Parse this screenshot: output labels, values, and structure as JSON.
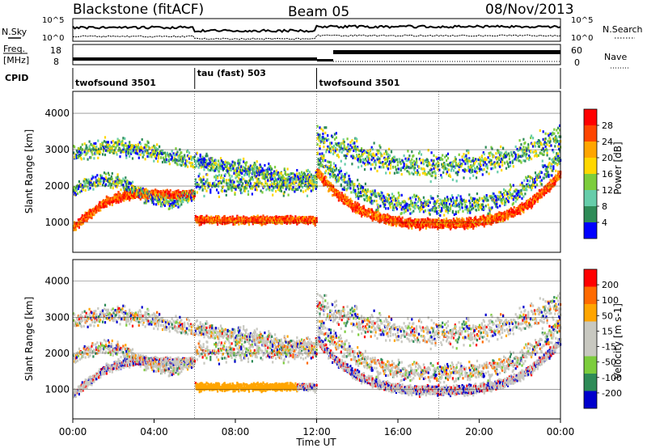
{
  "header": {
    "station": "Blackstone (fitACF)",
    "beam": "Beam 05",
    "date": "08/Nov/2013"
  },
  "top_panel": {
    "left_label": "N.Sky",
    "right_label": "N.Search",
    "left_ticks": [
      "10^5",
      "10^0"
    ],
    "right_ticks": [
      "10^5",
      "10^0"
    ]
  },
  "freq_panel": {
    "left_label_1": "Freq.",
    "left_label_2": "[MHz]",
    "left_ticks": [
      "18",
      "8"
    ],
    "right_label": "Nave",
    "right_ticks": [
      "60",
      "0"
    ]
  },
  "cpid": {
    "label": "CPID",
    "segments": [
      {
        "start_h": 0,
        "end_h": 6,
        "name": "twofsound 3501"
      },
      {
        "start_h": 6,
        "end_h": 12,
        "name": "tau (fast) 503"
      },
      {
        "start_h": 12,
        "end_h": 24,
        "name": "twofsound 3501"
      }
    ]
  },
  "colors": {
    "power_scale": [
      "#0000ff",
      "#2e8b57",
      "#66cdaa",
      "#7ccd3c",
      "#ffd700",
      "#ffa500",
      "#ff4500",
      "#ff0000"
    ],
    "velocity_scale": [
      "#0000cd",
      "#2e8b57",
      "#7ccd3c",
      "#c8c8c0",
      "#c8c8c0",
      "#ffa500",
      "#ff6a00",
      "#ff0000"
    ]
  },
  "chart_data": [
    {
      "type": "heatmap",
      "title": "Power",
      "xlabel": "Time UT",
      "ylabel": "Slant Range [km]",
      "xlim_hours": [
        0,
        24
      ],
      "ylim_km": [
        180,
        4600
      ],
      "x_ticks": [
        "00:00",
        "04:00",
        "08:00",
        "12:00",
        "16:00",
        "20:00",
        "00:00"
      ],
      "y_ticks": [
        1000,
        2000,
        3000,
        4000
      ],
      "colorbar_label": "Power [dB]",
      "colorbar_ticks": [
        "4",
        "8",
        "12",
        "16",
        "20",
        "24",
        "28"
      ],
      "grid": true
    },
    {
      "type": "heatmap",
      "title": "Velocity",
      "xlabel": "Time UT",
      "ylabel": "Slant Range [km]",
      "xlim_hours": [
        0,
        24
      ],
      "ylim_km": [
        180,
        4600
      ],
      "x_ticks": [
        "00:00",
        "04:00",
        "08:00",
        "12:00",
        "16:00",
        "20:00",
        "00:00"
      ],
      "y_ticks": [
        1000,
        2000,
        3000,
        4000
      ],
      "colorbar_label": "Velocity [m s-1]",
      "colorbar_ticks": [
        "200",
        "100",
        "50",
        "15",
        "-15",
        "-50",
        "-100",
        "-200"
      ],
      "grid": true
    }
  ],
  "xaxis": {
    "label": "Time UT"
  }
}
